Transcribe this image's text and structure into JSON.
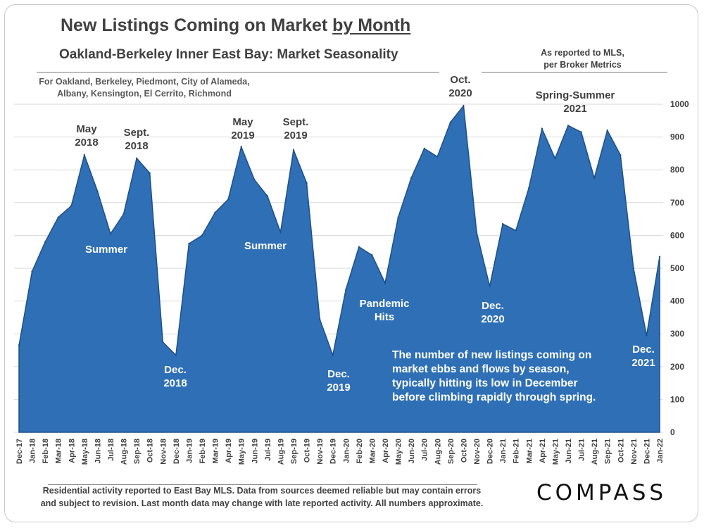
{
  "header": {
    "title_main": "New Listings Coming on Market ",
    "title_underlined": "by Month",
    "subtitle": "Oakland-Berkeley Inner East Bay: Market Seasonality",
    "cities_line1": "For Oakland, Berkeley, Piedmont, City of Alameda,",
    "cities_line2": "Albany, Kensington, El Cerrito, Richmond",
    "mls_line1": "As reported to MLS,",
    "mls_line2": "per Broker Metrics"
  },
  "footer": {
    "line1": "Residential activity reported to East Bay MLS. Data from sources deemed reliable but may contain errors",
    "line2": "and subject to revision. Last month data may change with late reported activity. All numbers approximate.",
    "logo": "COMPASS"
  },
  "colors": {
    "area_fill": "#2e6fb6",
    "area_stroke": "#1f4f88",
    "gridline": "#d9d9d9",
    "label_dark": "#404040",
    "label_light": "#ffffff"
  },
  "chart_data": {
    "type": "area",
    "title": "New Listings Coming on Market by Month",
    "subtitle": "Oakland-Berkeley Inner East Bay: Market Seasonality",
    "xlabel": "",
    "ylabel": "",
    "ylim": [
      0,
      1000
    ],
    "yticks": [
      0,
      100,
      200,
      300,
      400,
      500,
      600,
      700,
      800,
      900,
      1000
    ],
    "grid": true,
    "categories": [
      "Dec-17",
      "Jan-18",
      "Feb-18",
      "Mar-18",
      "Apr-18",
      "May-18",
      "Jun-18",
      "Jul-18",
      "Aug-18",
      "Sep-18",
      "Oct-18",
      "Nov-18",
      "Dec-18",
      "Jan-19",
      "Feb-19",
      "Mar-19",
      "Apr-19",
      "May-19",
      "Jun-19",
      "Jul-19",
      "Aug-19",
      "Sep-19",
      "Oct-19",
      "Nov-19",
      "Dec-19",
      "Jan-20",
      "Feb-20",
      "Mar-20",
      "Apr-20",
      "May-20",
      "Jun-20",
      "Jul-20",
      "Aug-20",
      "Sep-20",
      "Oct-20",
      "Nov-20",
      "Dec-20",
      "Jan-21",
      "Feb-21",
      "Mar-21",
      "Apr-21",
      "May-21",
      "Jun-21",
      "Jul-21",
      "Aug-21",
      "Sep-21",
      "Oct-21",
      "Nov-21",
      "Dec-21",
      "Jan-22"
    ],
    "values": [
      265,
      490,
      580,
      655,
      690,
      845,
      735,
      605,
      665,
      835,
      790,
      275,
      235,
      575,
      600,
      670,
      710,
      870,
      770,
      720,
      610,
      860,
      760,
      345,
      235,
      435,
      565,
      540,
      455,
      655,
      775,
      865,
      840,
      945,
      995,
      610,
      445,
      635,
      615,
      745,
      925,
      835,
      935,
      915,
      775,
      920,
      845,
      500,
      295,
      535
    ],
    "annotations": [
      {
        "lines": [
          "May",
          "2018"
        ],
        "index": 5,
        "color": "dark"
      },
      {
        "lines": [
          "Sept.",
          "2018"
        ],
        "index": 9,
        "color": "dark"
      },
      {
        "lines": [
          "Summer"
        ],
        "index": 7,
        "color": "light"
      },
      {
        "lines": [
          "Dec.",
          "2018"
        ],
        "index": 12,
        "color": "light"
      },
      {
        "lines": [
          "May",
          "2019"
        ],
        "index": 17,
        "color": "dark"
      },
      {
        "lines": [
          "Sept.",
          "2019"
        ],
        "index": 21,
        "color": "dark"
      },
      {
        "lines": [
          "Summer"
        ],
        "index": 19,
        "color": "light"
      },
      {
        "lines": [
          "Dec.",
          "2019"
        ],
        "index": 24,
        "color": "light"
      },
      {
        "lines": [
          "Pandemic",
          "Hits"
        ],
        "index": 28,
        "color": "light"
      },
      {
        "lines": [
          "Oct.",
          "2020"
        ],
        "index": 34,
        "color": "dark"
      },
      {
        "lines": [
          "Dec.",
          "2020"
        ],
        "index": 36,
        "color": "light"
      },
      {
        "lines": [
          "Spring-Summer",
          "2021"
        ],
        "index": 42,
        "color": "dark"
      },
      {
        "lines": [
          "Dec.",
          "2021"
        ],
        "index": 48,
        "color": "light"
      }
    ],
    "callout": [
      "The number of new listings coming on",
      "market ebbs and flows by season,",
      "typically hitting its low in December",
      "before climbing rapidly through spring."
    ]
  }
}
